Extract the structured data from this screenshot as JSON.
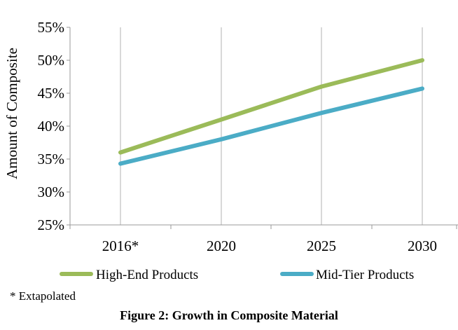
{
  "chart_data": {
    "type": "line",
    "categories": [
      "2016*",
      "2020",
      "2025",
      "2030"
    ],
    "series": [
      {
        "name": "High-End Products",
        "values": [
          36,
          41,
          46,
          50
        ],
        "color": "#9BBB59"
      },
      {
        "name": "Mid-Tier Products",
        "values": [
          34.3,
          38,
          42,
          45.7
        ],
        "color": "#4BACC6"
      }
    ],
    "ylabel": "Amount of Composite",
    "xlabel": "",
    "ylim": [
      25,
      55
    ],
    "yticks": [
      "25%",
      "30%",
      "35%",
      "40%",
      "45%",
      "50%",
      "55%"
    ],
    "ytick_values": [
      25,
      30,
      35,
      40,
      45,
      50,
      55
    ],
    "grid": "vertical",
    "legend_position": "bottom"
  },
  "footnote": "* Extapolated",
  "caption": "Figure 2: Growth in Composite Material"
}
